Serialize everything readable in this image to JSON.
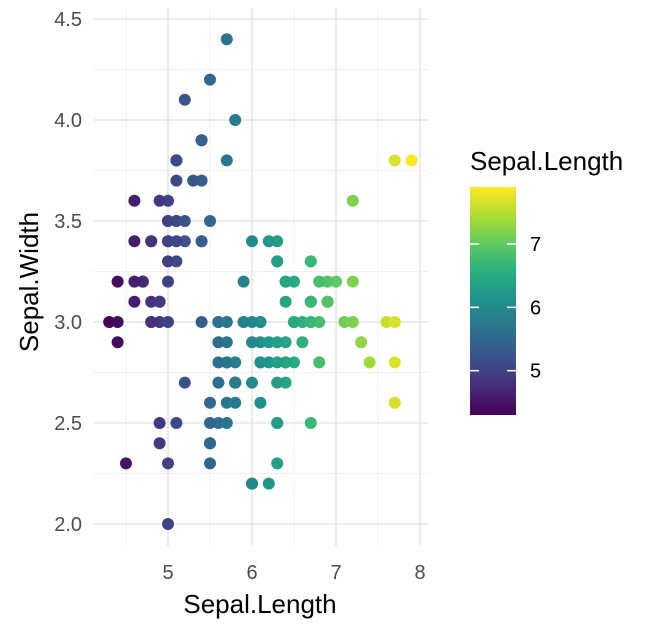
{
  "chart_data": {
    "type": "scatter",
    "xlabel": "Sepal.Length",
    "ylabel": "Sepal.Width",
    "xlim": [
      4.3,
      8.0
    ],
    "ylim": [
      1.95,
      4.5
    ],
    "x_ticks": [
      5,
      6,
      7,
      8
    ],
    "y_ticks": [
      2.0,
      2.5,
      3.0,
      3.5,
      4.0,
      4.5
    ],
    "x_tick_labels": [
      "5",
      "6",
      "7",
      "8"
    ],
    "y_tick_labels": [
      "2.0",
      "2.5",
      "3.0",
      "3.5",
      "4.0",
      "4.5"
    ],
    "grid": true,
    "color_by": "Sepal.Length",
    "colormap": "viridis",
    "legend": {
      "title": "Sepal.Length",
      "position": "right",
      "range": [
        4.3,
        7.9
      ],
      "ticks": [
        5,
        6,
        7
      ],
      "tick_labels": [
        "5",
        "6",
        "7"
      ]
    },
    "points": [
      {
        "x": 5.1,
        "y": 3.5
      },
      {
        "x": 4.9,
        "y": 3.0
      },
      {
        "x": 4.7,
        "y": 3.2
      },
      {
        "x": 4.6,
        "y": 3.1
      },
      {
        "x": 5.0,
        "y": 3.6
      },
      {
        "x": 5.4,
        "y": 3.9
      },
      {
        "x": 4.6,
        "y": 3.4
      },
      {
        "x": 5.0,
        "y": 3.4
      },
      {
        "x": 4.4,
        "y": 2.9
      },
      {
        "x": 4.9,
        "y": 3.1
      },
      {
        "x": 5.4,
        "y": 3.7
      },
      {
        "x": 4.8,
        "y": 3.4
      },
      {
        "x": 4.8,
        "y": 3.0
      },
      {
        "x": 4.3,
        "y": 3.0
      },
      {
        "x": 5.8,
        "y": 4.0
      },
      {
        "x": 5.7,
        "y": 4.4
      },
      {
        "x": 5.4,
        "y": 3.9
      },
      {
        "x": 5.1,
        "y": 3.5
      },
      {
        "x": 5.7,
        "y": 3.8
      },
      {
        "x": 5.1,
        "y": 3.8
      },
      {
        "x": 5.4,
        "y": 3.4
      },
      {
        "x": 5.1,
        "y": 3.7
      },
      {
        "x": 4.6,
        "y": 3.6
      },
      {
        "x": 5.1,
        "y": 3.3
      },
      {
        "x": 4.8,
        "y": 3.4
      },
      {
        "x": 5.0,
        "y": 3.0
      },
      {
        "x": 5.0,
        "y": 3.4
      },
      {
        "x": 5.2,
        "y": 3.5
      },
      {
        "x": 5.2,
        "y": 3.4
      },
      {
        "x": 4.7,
        "y": 3.2
      },
      {
        "x": 4.8,
        "y": 3.1
      },
      {
        "x": 5.4,
        "y": 3.4
      },
      {
        "x": 5.2,
        "y": 4.1
      },
      {
        "x": 5.5,
        "y": 4.2
      },
      {
        "x": 4.9,
        "y": 3.1
      },
      {
        "x": 5.0,
        "y": 3.2
      },
      {
        "x": 5.5,
        "y": 3.5
      },
      {
        "x": 4.9,
        "y": 3.6
      },
      {
        "x": 4.4,
        "y": 3.0
      },
      {
        "x": 5.1,
        "y": 3.4
      },
      {
        "x": 5.0,
        "y": 3.5
      },
      {
        "x": 4.5,
        "y": 2.3
      },
      {
        "x": 4.4,
        "y": 3.2
      },
      {
        "x": 5.0,
        "y": 3.5
      },
      {
        "x": 5.1,
        "y": 3.8
      },
      {
        "x": 4.8,
        "y": 3.0
      },
      {
        "x": 5.1,
        "y": 3.8
      },
      {
        "x": 4.6,
        "y": 3.2
      },
      {
        "x": 5.3,
        "y": 3.7
      },
      {
        "x": 5.0,
        "y": 3.3
      },
      {
        "x": 7.0,
        "y": 3.2
      },
      {
        "x": 6.4,
        "y": 3.2
      },
      {
        "x": 6.9,
        "y": 3.1
      },
      {
        "x": 5.5,
        "y": 2.3
      },
      {
        "x": 6.5,
        "y": 2.8
      },
      {
        "x": 5.7,
        "y": 2.8
      },
      {
        "x": 6.3,
        "y": 3.3
      },
      {
        "x": 4.9,
        "y": 2.4
      },
      {
        "x": 6.6,
        "y": 2.9
      },
      {
        "x": 5.2,
        "y": 2.7
      },
      {
        "x": 5.0,
        "y": 2.0
      },
      {
        "x": 5.9,
        "y": 3.0
      },
      {
        "x": 6.0,
        "y": 2.2
      },
      {
        "x": 6.1,
        "y": 2.9
      },
      {
        "x": 5.6,
        "y": 2.9
      },
      {
        "x": 6.7,
        "y": 3.1
      },
      {
        "x": 5.6,
        "y": 3.0
      },
      {
        "x": 5.8,
        "y": 2.7
      },
      {
        "x": 6.2,
        "y": 2.2
      },
      {
        "x": 5.6,
        "y": 2.5
      },
      {
        "x": 5.9,
        "y": 3.2
      },
      {
        "x": 6.1,
        "y": 2.8
      },
      {
        "x": 6.3,
        "y": 2.5
      },
      {
        "x": 6.1,
        "y": 2.8
      },
      {
        "x": 6.4,
        "y": 2.9
      },
      {
        "x": 6.6,
        "y": 3.0
      },
      {
        "x": 6.8,
        "y": 2.8
      },
      {
        "x": 6.7,
        "y": 3.0
      },
      {
        "x": 6.0,
        "y": 2.9
      },
      {
        "x": 5.7,
        "y": 2.6
      },
      {
        "x": 5.5,
        "y": 2.4
      },
      {
        "x": 5.5,
        "y": 2.4
      },
      {
        "x": 5.8,
        "y": 2.7
      },
      {
        "x": 6.0,
        "y": 2.7
      },
      {
        "x": 5.4,
        "y": 3.0
      },
      {
        "x": 6.0,
        "y": 3.4
      },
      {
        "x": 6.7,
        "y": 3.1
      },
      {
        "x": 6.3,
        "y": 2.3
      },
      {
        "x": 5.6,
        "y": 3.0
      },
      {
        "x": 5.5,
        "y": 2.5
      },
      {
        "x": 5.5,
        "y": 2.6
      },
      {
        "x": 6.1,
        "y": 3.0
      },
      {
        "x": 5.8,
        "y": 2.6
      },
      {
        "x": 5.0,
        "y": 2.3
      },
      {
        "x": 5.6,
        "y": 2.7
      },
      {
        "x": 5.7,
        "y": 3.0
      },
      {
        "x": 5.7,
        "y": 2.9
      },
      {
        "x": 6.2,
        "y": 2.9
      },
      {
        "x": 5.1,
        "y": 2.5
      },
      {
        "x": 5.7,
        "y": 2.8
      },
      {
        "x": 6.3,
        "y": 3.3
      },
      {
        "x": 5.8,
        "y": 2.7
      },
      {
        "x": 7.1,
        "y": 3.0
      },
      {
        "x": 6.3,
        "y": 2.9
      },
      {
        "x": 6.5,
        "y": 3.0
      },
      {
        "x": 7.6,
        "y": 3.0
      },
      {
        "x": 4.9,
        "y": 2.5
      },
      {
        "x": 7.3,
        "y": 2.9
      },
      {
        "x": 6.7,
        "y": 2.5
      },
      {
        "x": 7.2,
        "y": 3.6
      },
      {
        "x": 6.5,
        "y": 3.2
      },
      {
        "x": 6.4,
        "y": 2.7
      },
      {
        "x": 6.8,
        "y": 3.0
      },
      {
        "x": 5.7,
        "y": 2.5
      },
      {
        "x": 5.8,
        "y": 2.8
      },
      {
        "x": 6.4,
        "y": 3.2
      },
      {
        "x": 6.5,
        "y": 3.0
      },
      {
        "x": 7.7,
        "y": 3.8
      },
      {
        "x": 7.7,
        "y": 2.6
      },
      {
        "x": 6.0,
        "y": 2.2
      },
      {
        "x": 6.9,
        "y": 3.2
      },
      {
        "x": 5.6,
        "y": 2.8
      },
      {
        "x": 7.7,
        "y": 2.8
      },
      {
        "x": 6.3,
        "y": 2.7
      },
      {
        "x": 6.7,
        "y": 3.3
      },
      {
        "x": 7.2,
        "y": 3.2
      },
      {
        "x": 6.2,
        "y": 2.8
      },
      {
        "x": 6.1,
        "y": 3.0
      },
      {
        "x": 6.4,
        "y": 2.8
      },
      {
        "x": 7.2,
        "y": 3.0
      },
      {
        "x": 7.4,
        "y": 2.8
      },
      {
        "x": 7.9,
        "y": 3.8
      },
      {
        "x": 6.4,
        "y": 2.8
      },
      {
        "x": 6.3,
        "y": 2.8
      },
      {
        "x": 6.1,
        "y": 2.6
      },
      {
        "x": 7.7,
        "y": 3.0
      },
      {
        "x": 6.3,
        "y": 3.4
      },
      {
        "x": 6.4,
        "y": 3.1
      },
      {
        "x": 6.0,
        "y": 3.0
      },
      {
        "x": 6.9,
        "y": 3.1
      },
      {
        "x": 6.7,
        "y": 3.1
      },
      {
        "x": 6.9,
        "y": 3.1
      },
      {
        "x": 5.8,
        "y": 2.7
      },
      {
        "x": 6.8,
        "y": 3.2
      },
      {
        "x": 6.7,
        "y": 3.3
      },
      {
        "x": 6.7,
        "y": 3.0
      },
      {
        "x": 6.3,
        "y": 2.5
      },
      {
        "x": 6.5,
        "y": 3.0
      },
      {
        "x": 6.2,
        "y": 3.4
      },
      {
        "x": 5.9,
        "y": 3.0
      }
    ]
  }
}
